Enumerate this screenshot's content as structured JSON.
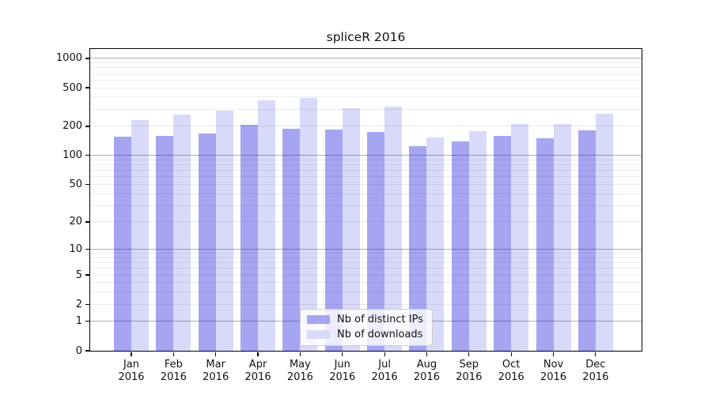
{
  "chart_data": {
    "type": "bar",
    "title": "spliceR 2016",
    "categories": [
      "Jan",
      "Feb",
      "Mar",
      "Apr",
      "May",
      "Jun",
      "Jul",
      "Aug",
      "Sep",
      "Oct",
      "Nov",
      "Dec"
    ],
    "category_year": "2016",
    "series": [
      {
        "name": "Nb of distinct IPs",
        "color": "#a5a5f2",
        "values": [
          157,
          158,
          168,
          207,
          190,
          185,
          175,
          125,
          140,
          160,
          150,
          183
        ]
      },
      {
        "name": "Nb of downloads",
        "color": "#d9d9f9",
        "values": [
          232,
          265,
          290,
          370,
          395,
          310,
          320,
          155,
          180,
          213,
          210,
          270
        ]
      }
    ],
    "yscale": "log1p",
    "yticks": [
      0,
      1,
      2,
      5,
      10,
      20,
      50,
      100,
      200,
      500,
      1000
    ],
    "ylim": [
      0,
      1250
    ],
    "grid": {
      "on": true,
      "dark_line_color": "#b0b0b0",
      "light_line_color": "#ebebeb",
      "dark_lines": [
        1,
        10,
        100,
        1000
      ],
      "light_lines": [
        2,
        5,
        20,
        50,
        200,
        500,
        3,
        4,
        6,
        7,
        8,
        9,
        30,
        40,
        60,
        70,
        80,
        90,
        300,
        400,
        600,
        700,
        800,
        900
      ]
    },
    "legend": {
      "position": "lower center"
    }
  }
}
